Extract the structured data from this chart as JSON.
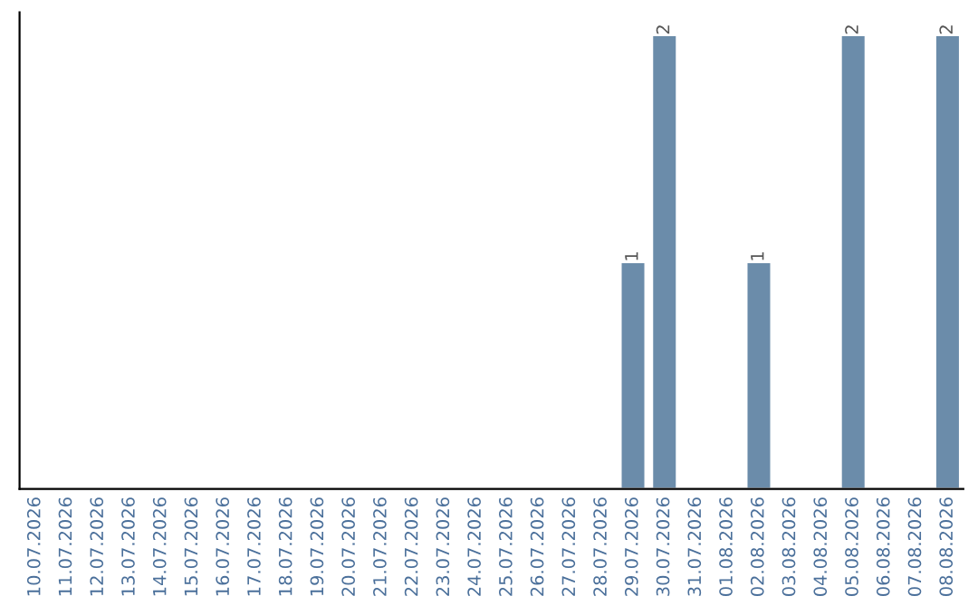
{
  "chart_data": {
    "type": "bar",
    "categories": [
      "10.07.2026",
      "11.07.2026",
      "12.07.2026",
      "13.07.2026",
      "14.07.2026",
      "15.07.2026",
      "16.07.2026",
      "17.07.2026",
      "18.07.2026",
      "19.07.2026",
      "20.07.2026",
      "21.07.2026",
      "22.07.2026",
      "23.07.2026",
      "24.07.2026",
      "25.07.2026",
      "26.07.2026",
      "27.07.2026",
      "28.07.2026",
      "29.07.2026",
      "30.07.2026",
      "31.07.2026",
      "01.08.2026",
      "02.08.2026",
      "03.08.2026",
      "04.08.2026",
      "05.08.2026",
      "06.08.2026",
      "07.08.2026",
      "08.08.2026"
    ],
    "values": [
      null,
      null,
      null,
      null,
      null,
      null,
      null,
      null,
      null,
      null,
      null,
      null,
      null,
      null,
      null,
      null,
      null,
      null,
      null,
      1,
      2,
      null,
      null,
      1,
      null,
      null,
      2,
      null,
      null,
      2
    ],
    "data_labels": true,
    "color": "#6b8caa",
    "grid": false,
    "legend": false
  }
}
